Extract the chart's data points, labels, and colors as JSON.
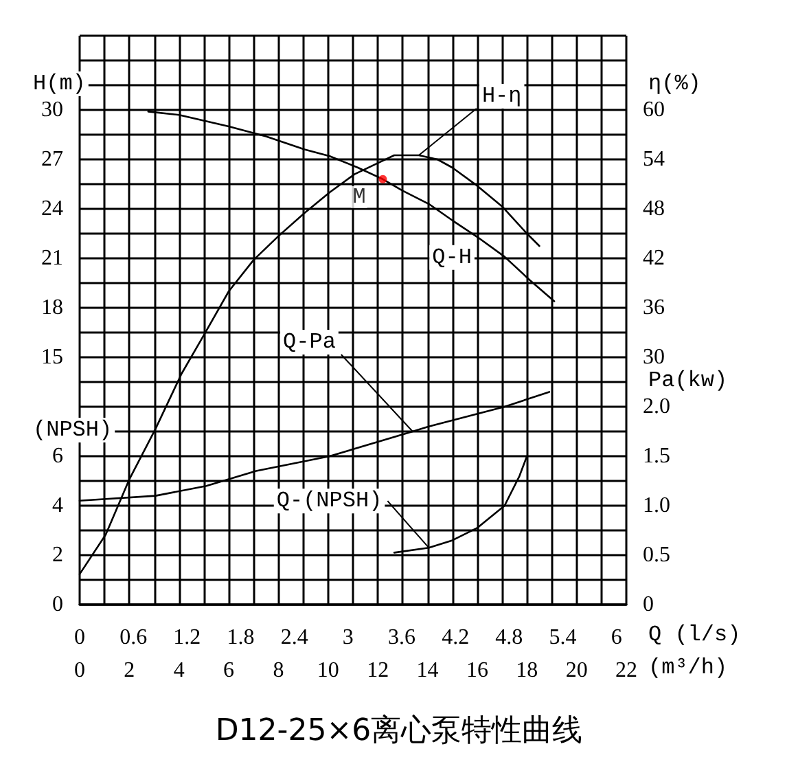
{
  "chart_data": [
    {
      "type": "line",
      "title": "D12-25×6离心泵特性曲线",
      "xlabel": "(m³/h)",
      "x2label": "Q (l/s)",
      "ylabel": "H(m)",
      "y2label": "η(%)",
      "xlim": [
        0,
        22
      ],
      "xticks": [
        0,
        2,
        4,
        6,
        8,
        10,
        12,
        14,
        16,
        18,
        20,
        22
      ],
      "x2lim": [
        0,
        6.11
      ],
      "x2ticks": [
        0,
        0.6,
        1.2,
        1.8,
        2.4,
        3,
        3.6,
        4.2,
        4.8,
        5.4,
        6
      ],
      "ylim": [
        0,
        34.5
      ],
      "yticks": [
        15,
        18,
        21,
        24,
        27,
        30
      ],
      "y2lim": [
        0,
        69
      ],
      "y2ticks": [
        30,
        36,
        42,
        48,
        54,
        60
      ],
      "series": [
        {
          "name": "Q-H",
          "color": "#000000",
          "x": [
            2.76,
            4,
            6,
            7.5,
            9.05,
            10.06,
            11.2,
            12.2,
            13,
            14.05,
            15,
            16,
            17.1,
            18.1,
            19.1
          ],
          "values": [
            29.9,
            29.7,
            29,
            28.4,
            27.6,
            27.2,
            26.5,
            25.8,
            25.1,
            24.3,
            23.3,
            22.3,
            21.1,
            19.7,
            18.4
          ]
        },
        {
          "name": "H-η",
          "color": "#000000",
          "axis": "y2",
          "x": [
            0,
            1.05,
            2,
            3.05,
            4.1,
            5,
            6,
            7,
            8,
            9.05,
            10.06,
            11.06,
            12.1,
            12.66,
            13.65,
            14.4,
            15,
            16,
            17,
            18,
            18.5
          ],
          "values": [
            3.7,
            8.5,
            15.2,
            21.3,
            28,
            32.7,
            38,
            41.8,
            44.7,
            47.5,
            50,
            52.2,
            53.7,
            54.5,
            54.5,
            54,
            53,
            50.8,
            48.3,
            45,
            43.5
          ]
        }
      ],
      "annotations": [
        {
          "text": "M",
          "x": 12.2,
          "y": 25.8
        }
      ],
      "grid": true,
      "legend": false,
      "marker": "none",
      "line_style": "solid"
    },
    {
      "type": "line",
      "ylabel": "(NPSH)",
      "y2label": "Pa(kw)",
      "tick_labels": "y",
      "xlim": [
        0,
        22
      ],
      "ylim": [
        0,
        23
      ],
      "yticks": [
        0,
        2,
        4,
        6
      ],
      "y2lim": [
        0,
        5.75
      ],
      "y2ticks": [
        0,
        0.5,
        {
          "value": 1,
          "label": "1.0"
        },
        1.5,
        {
          "value": 2,
          "label": "2.0"
        }
      ],
      "series": [
        {
          "name": "Q-Pa",
          "color": "#000000",
          "axis": "y2",
          "x": [
            0,
            3.05,
            5.1,
            7.1,
            10.06,
            13.4,
            14.05,
            17.1,
            18.9
          ],
          "values": [
            1.05,
            1.1,
            1.2,
            1.35,
            1.5,
            1.75,
            1.8,
            2,
            2.15
          ]
        },
        {
          "name": "Q-(NPSH)",
          "color": "#000000",
          "x": [
            12.66,
            14.05,
            15,
            16,
            17.1,
            17.7,
            18
          ],
          "values": [
            2.1,
            2.3,
            2.6,
            3.1,
            4,
            5.2,
            6
          ]
        }
      ],
      "grid": false,
      "legend": false,
      "marker": "none",
      "line_style": "solid"
    }
  ]
}
